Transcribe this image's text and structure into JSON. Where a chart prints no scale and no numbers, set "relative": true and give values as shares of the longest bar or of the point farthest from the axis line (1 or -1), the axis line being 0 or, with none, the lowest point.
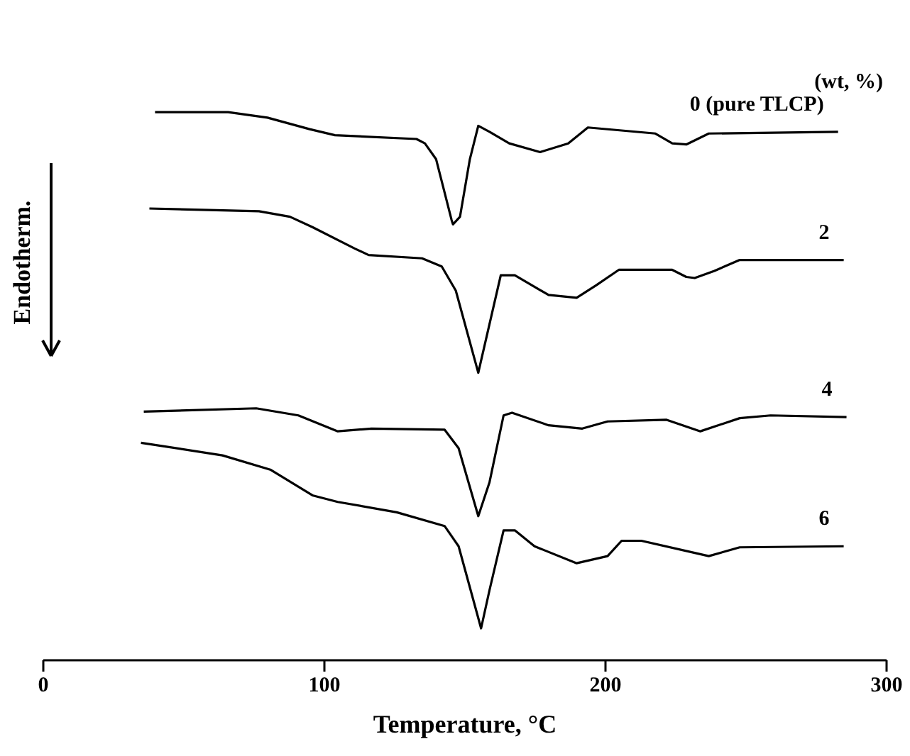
{
  "chart_data": {
    "type": "line",
    "relative": true,
    "xlabel": "Temperature, °C",
    "ylabel": "Endotherm.",
    "legend_title": "(wt, %)",
    "xlim": [
      0,
      300
    ],
    "xticks": [
      0,
      100,
      200,
      300
    ],
    "grid": false,
    "marker": "none",
    "line_style": "solid",
    "series": [
      {
        "name": "0 (pure TLCP)",
        "color": "#000000",
        "x": [
          40,
          66,
          80,
          95,
          104,
          133,
          136,
          140,
          145.5,
          146,
          148.5,
          152,
          155,
          159,
          166,
          177,
          187,
          194,
          218,
          224,
          229,
          237,
          283
        ],
        "values": [
          1.0,
          1.0,
          0.99,
          0.969,
          0.958,
          0.951,
          0.943,
          0.914,
          0.803,
          0.795,
          0.809,
          0.914,
          0.975,
          0.964,
          0.943,
          0.927,
          0.943,
          0.972,
          0.961,
          0.943,
          0.941,
          0.961,
          0.964
        ]
      },
      {
        "name": "2",
        "color": "#000000",
        "x": [
          38,
          77,
          88,
          96,
          111,
          116,
          135,
          142,
          147,
          155,
          163,
          168,
          180,
          190,
          197,
          205,
          224,
          229,
          232,
          239,
          248,
          285
        ],
        "values": [
          0.824,
          0.819,
          0.809,
          0.79,
          0.751,
          0.739,
          0.733,
          0.718,
          0.674,
          0.524,
          0.702,
          0.702,
          0.666,
          0.661,
          0.684,
          0.712,
          0.712,
          0.699,
          0.697,
          0.71,
          0.73,
          0.73
        ]
      },
      {
        "name": "4",
        "color": "#000000",
        "x": [
          36,
          76,
          91,
          105,
          117,
          143,
          148,
          155,
          159,
          164,
          167,
          180,
          192,
          201,
          222,
          234,
          248,
          259,
          286
        ],
        "values": [
          0.453,
          0.459,
          0.446,
          0.417,
          0.422,
          0.42,
          0.386,
          0.262,
          0.324,
          0.446,
          0.451,
          0.428,
          0.422,
          0.435,
          0.438,
          0.417,
          0.441,
          0.446,
          0.443
        ]
      },
      {
        "name": "6",
        "color": "#000000",
        "x": [
          35,
          64,
          81,
          96,
          105,
          126,
          143,
          148,
          156,
          159,
          164,
          168,
          175,
          190,
          201,
          206,
          213,
          237,
          248,
          285
        ],
        "values": [
          0.396,
          0.373,
          0.347,
          0.3,
          0.288,
          0.269,
          0.244,
          0.207,
          0.057,
          0.127,
          0.236,
          0.236,
          0.207,
          0.176,
          0.189,
          0.217,
          0.217,
          0.189,
          0.205,
          0.207
        ]
      }
    ]
  }
}
